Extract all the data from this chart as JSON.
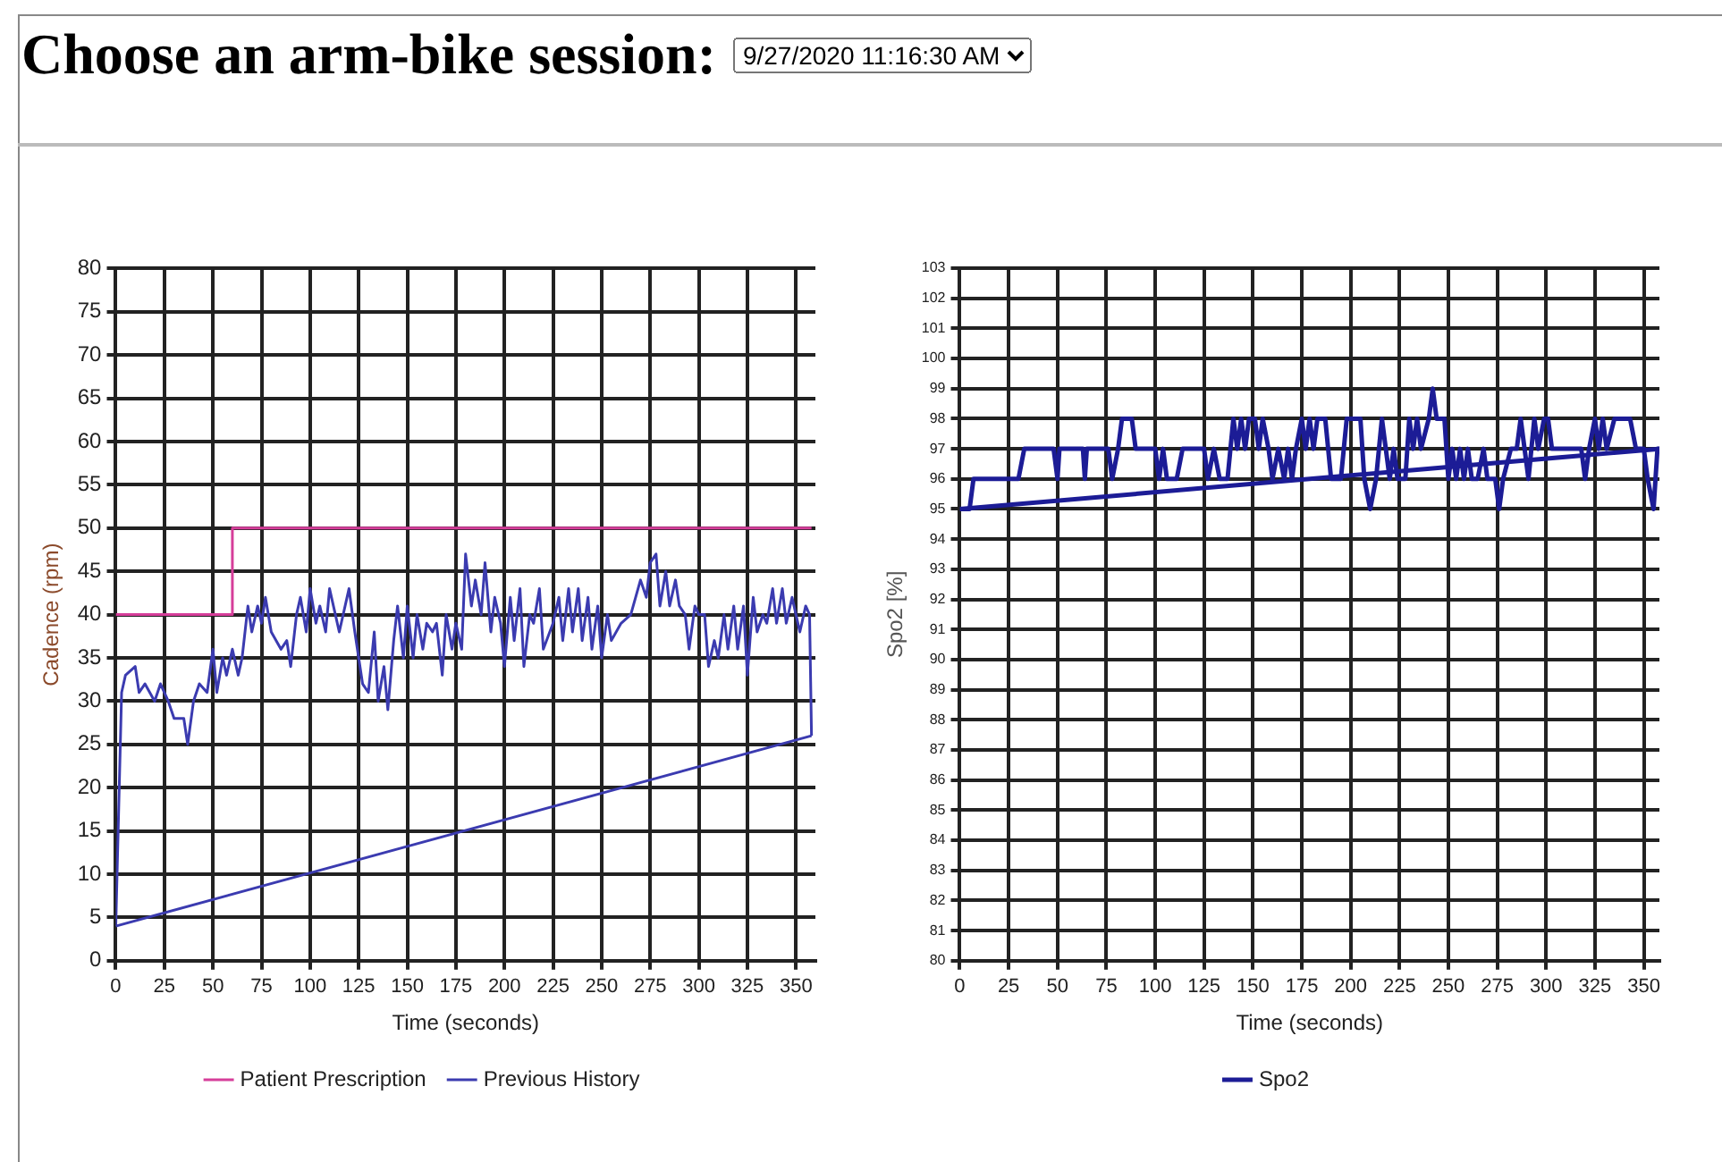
{
  "chart_data": [
    {
      "type": "line",
      "annotations": [
        "Choose an arm-bike session:",
        "9/27/2020 11:16:30 AM"
      ],
      "xlabel": "Time (seconds)",
      "ylabel": "Cadence (rpm)",
      "xlim": [
        0,
        360
      ],
      "xticks": [
        0,
        25,
        50,
        75,
        100,
        125,
        150,
        175,
        200,
        225,
        250,
        275,
        300,
        325,
        350
      ],
      "ylim": [
        0,
        80
      ],
      "yticks": [
        0,
        5,
        10,
        15,
        20,
        25,
        30,
        35,
        40,
        45,
        50,
        55,
        60,
        65,
        70,
        75,
        80
      ],
      "grid": true,
      "legend": "bottom",
      "marker": "none",
      "line_style": "solid",
      "series": [
        {
          "name": "Patient Prescription",
          "color": "#d63e9a",
          "x": [
            0,
            60,
            60,
            358
          ],
          "values": [
            40,
            40,
            50,
            50
          ]
        },
        {
          "color": "#3b3bb0",
          "x": [
            0,
            358
          ],
          "values": [
            4,
            26
          ]
        },
        {
          "name": "Previous History",
          "color": "#3b3bb0",
          "x": [
            0,
            3,
            5,
            10,
            12,
            15,
            20,
            23,
            27,
            30,
            35,
            37,
            40,
            43,
            47,
            50,
            52,
            55,
            57,
            60,
            63,
            65,
            68,
            70,
            73,
            75,
            77,
            80,
            85,
            88,
            90,
            93,
            95,
            98,
            100,
            103,
            105,
            108,
            110,
            113,
            115,
            120,
            123,
            127,
            130,
            133,
            135,
            138,
            140,
            143,
            145,
            148,
            150,
            153,
            155,
            158,
            160,
            163,
            165,
            168,
            170,
            173,
            175,
            178,
            180,
            183,
            185,
            188,
            190,
            193,
            195,
            198,
            200,
            203,
            205,
            208,
            210,
            213,
            215,
            218,
            220,
            225,
            228,
            230,
            233,
            235,
            238,
            240,
            243,
            245,
            248,
            250,
            253,
            255,
            260,
            265,
            270,
            273,
            275,
            278,
            280,
            283,
            285,
            288,
            290,
            293,
            295,
            298,
            300,
            303,
            305,
            308,
            310,
            313,
            315,
            318,
            320,
            323,
            325,
            328,
            330,
            333,
            335,
            338,
            340,
            343,
            345,
            348,
            350,
            352,
            355,
            357,
            358
          ],
          "values": [
            4,
            31,
            33,
            34,
            31,
            32,
            30,
            32,
            30,
            28,
            28,
            25,
            30,
            32,
            31,
            36,
            31,
            35,
            33,
            36,
            33,
            35,
            41,
            38,
            41,
            39,
            42,
            38,
            36,
            37,
            34,
            40,
            42,
            38,
            43,
            39,
            41,
            38,
            43,
            40,
            38,
            43,
            38,
            32,
            31,
            38,
            30,
            34,
            29,
            37,
            41,
            35,
            41,
            35,
            40,
            36,
            39,
            38,
            39,
            33,
            40,
            36,
            39,
            36,
            47,
            41,
            44,
            40,
            46,
            38,
            42,
            39,
            34,
            42,
            37,
            43,
            34,
            40,
            39,
            43,
            36,
            39,
            42,
            37,
            43,
            38,
            43,
            37,
            42,
            36,
            41,
            35,
            40,
            37,
            39,
            40,
            44,
            42,
            46,
            47,
            41,
            45,
            41,
            44,
            41,
            40,
            36,
            41,
            40,
            40,
            34,
            37,
            35,
            40,
            36,
            41,
            36,
            41,
            33,
            42,
            38,
            40,
            39,
            43,
            39,
            43,
            39,
            42,
            40,
            38,
            41,
            40,
            26
          ]
        }
      ]
    },
    {
      "type": "line",
      "xlabel": "Time (seconds)",
      "ylabel": "Spo2 [%]",
      "xlim": [
        0,
        358
      ],
      "xticks": [
        0,
        25,
        50,
        75,
        100,
        125,
        150,
        175,
        200,
        225,
        250,
        275,
        300,
        325,
        350
      ],
      "ylim": [
        80,
        103
      ],
      "yticks": [
        80,
        81,
        82,
        83,
        84,
        85,
        86,
        87,
        88,
        89,
        90,
        91,
        92,
        93,
        94,
        95,
        96,
        97,
        98,
        99,
        100,
        101,
        102,
        103
      ],
      "grid": true,
      "legend": "bottom",
      "marker": "none",
      "line_style": "solid",
      "series": [
        {
          "color": "#1c1c96",
          "x": [
            0,
            358
          ],
          "values": [
            95,
            97
          ]
        },
        {
          "name": "Spo2",
          "color": "#1c1c96",
          "x": [
            0,
            5,
            7,
            30,
            33,
            48,
            50,
            51,
            63,
            64,
            65,
            76,
            78,
            81,
            83,
            88,
            90,
            100,
            102,
            104,
            106,
            111,
            114,
            125,
            127,
            130,
            133,
            137,
            140,
            142,
            144,
            146,
            148,
            151,
            153,
            155,
            158,
            160,
            163,
            166,
            168,
            170,
            172,
            175,
            177,
            179,
            181,
            183,
            187,
            190,
            195,
            198,
            205,
            207,
            210,
            213,
            216,
            218,
            220,
            222,
            224,
            228,
            230,
            232,
            234,
            236,
            240,
            242,
            244,
            248,
            250,
            252,
            254,
            256,
            258,
            260,
            262,
            265,
            268,
            270,
            274,
            276,
            278,
            282,
            285,
            287,
            289,
            291,
            294,
            296,
            299,
            301,
            303,
            318,
            320,
            322,
            325,
            327,
            329,
            331,
            335,
            343,
            346,
            350,
            352,
            355,
            357,
            358
          ],
          "values": [
            95,
            95,
            96,
            96,
            97,
            97,
            96,
            97,
            97,
            96,
            97,
            97,
            96,
            97,
            98,
            98,
            97,
            97,
            96,
            97,
            96,
            96,
            97,
            97,
            96,
            97,
            96,
            96,
            98,
            97,
            98,
            97,
            98,
            98,
            97,
            98,
            97,
            96,
            97,
            96,
            97,
            96,
            97,
            98,
            97,
            98,
            97,
            98,
            98,
            96,
            96,
            98,
            98,
            96,
            95,
            96,
            98,
            97,
            96,
            97,
            96,
            96,
            98,
            97,
            98,
            97,
            98,
            99,
            98,
            98,
            96,
            97,
            96,
            97,
            96,
            97,
            96,
            96,
            97,
            96,
            96,
            95,
            96,
            97,
            97,
            98,
            97,
            96,
            98,
            97,
            98,
            98,
            97,
            97,
            96,
            97,
            98,
            97,
            98,
            97,
            98,
            98,
            97,
            97,
            96,
            95,
            97,
            97
          ]
        }
      ]
    }
  ]
}
